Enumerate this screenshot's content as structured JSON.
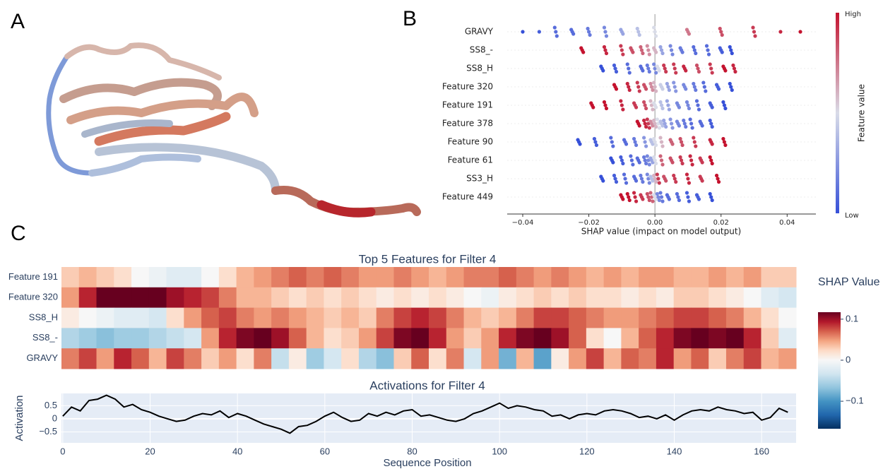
{
  "panel_labels": [
    "A",
    "B",
    "C"
  ],
  "chart_data": [
    {
      "type": "beeswarm",
      "xlabel": "SHAP value (impact on model output)",
      "categories": [
        "GRAVY",
        "SS8_-",
        "SS8_H",
        "Feature 320",
        "Feature 191",
        "Feature 378",
        "Feature 90",
        "Feature 61",
        "SS3_H",
        "Feature 449"
      ],
      "xlim": [
        -0.0447,
        0.0487
      ],
      "xticks": [
        {
          "value": -0.04,
          "label": "−0.04"
        },
        {
          "value": -0.02,
          "label": "−0.02"
        },
        {
          "value": 0,
          "label": "0.00"
        },
        {
          "value": 0.02,
          "label": "0.02"
        },
        {
          "value": 0.04,
          "label": "0.04"
        }
      ],
      "colorbar_title": "Feature value",
      "colorbar_high": "High",
      "colorbar_low": "Low",
      "colormap": [
        "#3650d8",
        "#d9dce8",
        "#c4122e"
      ],
      "shap_values": [
        [
          -0.04,
          -0.035,
          -0.03,
          -0.025,
          -0.02,
          -0.015,
          -0.01,
          -0.005,
          0.0,
          0.01,
          0.02,
          0.03,
          0.038,
          0.044
        ],
        [
          -0.022,
          -0.015,
          -0.01,
          -0.007,
          -0.004,
          -0.002,
          0.0,
          0.002,
          0.005,
          0.008,
          0.012,
          0.016,
          0.02,
          0.023
        ],
        [
          -0.016,
          -0.012,
          -0.008,
          -0.004,
          -0.002,
          0.0,
          0.001,
          0.003,
          0.006,
          0.009,
          0.013,
          0.017,
          0.021,
          0.024
        ],
        [
          -0.012,
          -0.008,
          -0.005,
          -0.003,
          -0.001,
          0.0,
          0.002,
          0.004,
          0.006,
          0.009,
          0.012,
          0.015,
          0.019,
          0.023
        ],
        [
          -0.019,
          -0.015,
          -0.01,
          -0.006,
          -0.003,
          -0.001,
          0.0,
          0.002,
          0.004,
          0.007,
          0.01,
          0.013,
          0.017,
          0.021
        ],
        [
          -0.005,
          -0.003,
          -0.002,
          -0.001,
          0.0,
          0.001,
          0.002,
          0.003,
          0.005,
          0.007,
          0.009,
          0.011,
          0.014,
          0.017
        ],
        [
          -0.023,
          -0.018,
          -0.013,
          -0.009,
          -0.006,
          -0.003,
          -0.001,
          0.0,
          0.002,
          0.005,
          0.008,
          0.012,
          0.017,
          0.021
        ],
        [
          -0.013,
          -0.01,
          -0.007,
          -0.005,
          -0.003,
          -0.002,
          -0.001,
          0.0,
          0.002,
          0.005,
          0.008,
          0.011,
          0.014,
          0.017
        ],
        [
          -0.016,
          -0.012,
          -0.009,
          -0.006,
          -0.004,
          -0.002,
          -0.001,
          0.0,
          0.001,
          0.003,
          0.006,
          0.01,
          0.014,
          0.019
        ],
        [
          -0.01,
          -0.008,
          -0.006,
          -0.004,
          -0.002,
          -0.001,
          0.0,
          0.001,
          0.002,
          0.004,
          0.007,
          0.01,
          0.013,
          0.017
        ]
      ],
      "feature_values": [
        [
          0.0,
          0.05,
          0.1,
          0.1,
          0.15,
          0.2,
          0.3,
          0.4,
          0.5,
          0.75,
          0.85,
          0.9,
          0.95,
          1.0
        ],
        [
          1.0,
          0.95,
          0.9,
          0.85,
          0.8,
          0.7,
          0.6,
          0.3,
          0.2,
          0.15,
          0.1,
          0.1,
          0.05,
          0.0
        ],
        [
          0.0,
          0.05,
          0.1,
          0.1,
          0.15,
          0.2,
          0.5,
          0.9,
          0.9,
          0.95,
          0.85,
          0.9,
          1.0,
          0.95
        ],
        [
          1.0,
          0.95,
          0.9,
          0.85,
          0.7,
          0.6,
          0.45,
          0.3,
          0.25,
          0.2,
          0.15,
          0.1,
          0.05,
          0.0
        ],
        [
          1.0,
          1.0,
          0.95,
          0.9,
          0.85,
          0.6,
          0.5,
          0.4,
          0.3,
          0.2,
          0.2,
          0.1,
          0.05,
          0.0
        ],
        [
          1.0,
          0.95,
          0.9,
          0.7,
          0.6,
          0.5,
          0.4,
          0.3,
          0.25,
          0.2,
          0.15,
          0.1,
          0.1,
          0.05
        ],
        [
          0.0,
          0.05,
          0.1,
          0.1,
          0.15,
          0.25,
          0.4,
          0.5,
          0.6,
          0.8,
          0.85,
          0.9,
          0.95,
          1.0
        ],
        [
          0.0,
          0.05,
          0.1,
          0.1,
          0.15,
          0.2,
          0.3,
          0.5,
          0.8,
          0.85,
          0.9,
          0.95,
          0.9,
          1.0
        ],
        [
          0.0,
          0.05,
          0.1,
          0.1,
          0.15,
          0.2,
          0.4,
          0.6,
          0.9,
          0.85,
          0.9,
          0.95,
          0.9,
          1.0
        ],
        [
          1.0,
          1.0,
          0.95,
          0.9,
          0.85,
          0.8,
          0.5,
          0.2,
          0.15,
          0.1,
          0.1,
          0.05,
          0.05,
          0.0
        ]
      ]
    },
    {
      "type": "heatmap",
      "title": "Top 5 Features for Filter 4",
      "rows": [
        "Feature 191",
        "Feature 320",
        "SS8_H",
        "SS8_-",
        "GRAVY"
      ],
      "colorbar_title": "SHAP Value",
      "zlim": [
        -0.167,
        0.117
      ],
      "zticks": [
        0.1,
        0,
        {
          "value": -0.1,
          "label": "−0.1"
        }
      ],
      "colorscale": [
        "#053061",
        "#2166ac",
        "#4393c3",
        "#92c5de",
        "#d1e5f0",
        "#f7f7f7",
        "#fddbc7",
        "#f4a582",
        "#d6604d",
        "#b2182b",
        "#67001f"
      ],
      "values": [
        [
          0.03,
          0.04,
          0.03,
          0.02,
          0.0,
          -0.01,
          -0.02,
          -0.02,
          0.0,
          0.02,
          0.04,
          0.05,
          0.06,
          0.07,
          0.06,
          0.07,
          0.06,
          0.05,
          0.05,
          0.06,
          0.05,
          0.04,
          0.05,
          0.06,
          0.06,
          0.07,
          0.06,
          0.05,
          0.06,
          0.05,
          0.04,
          0.05,
          0.04,
          0.05,
          0.05,
          0.04,
          0.04,
          0.05,
          0.04,
          0.05,
          0.03,
          0.03
        ],
        [
          0.05,
          0.09,
          0.13,
          0.15,
          0.14,
          0.13,
          0.1,
          0.09,
          0.08,
          0.06,
          0.04,
          0.04,
          0.03,
          0.02,
          0.03,
          0.02,
          0.03,
          0.02,
          0.01,
          0.02,
          0.01,
          0.02,
          0.01,
          0.0,
          -0.01,
          0.01,
          0.02,
          0.03,
          0.02,
          0.03,
          0.02,
          0.02,
          0.01,
          0.02,
          0.01,
          0.03,
          0.03,
          0.02,
          0.01,
          0.0,
          -0.02,
          -0.03
        ],
        [
          0.01,
          0.0,
          -0.01,
          -0.02,
          -0.02,
          -0.03,
          0.02,
          0.05,
          0.07,
          0.08,
          0.06,
          0.05,
          0.06,
          0.05,
          0.04,
          0.03,
          0.04,
          0.03,
          0.06,
          0.08,
          0.09,
          0.08,
          0.06,
          0.04,
          0.03,
          0.04,
          0.06,
          0.08,
          0.08,
          0.07,
          0.06,
          0.05,
          0.05,
          0.06,
          0.07,
          0.08,
          0.08,
          0.07,
          0.06,
          0.04,
          0.02,
          0.0
        ],
        [
          -0.05,
          -0.06,
          -0.07,
          -0.06,
          -0.06,
          -0.05,
          -0.04,
          -0.03,
          0.05,
          0.09,
          0.11,
          0.12,
          0.1,
          0.07,
          0.04,
          0.02,
          0.03,
          0.05,
          0.08,
          0.11,
          0.12,
          0.09,
          0.05,
          0.03,
          0.05,
          0.09,
          0.11,
          0.12,
          0.1,
          0.07,
          0.02,
          0.0,
          0.04,
          0.07,
          0.09,
          0.11,
          0.12,
          0.11,
          0.12,
          0.09,
          0.03,
          -0.02
        ],
        [
          0.06,
          0.08,
          0.05,
          0.09,
          0.07,
          0.04,
          0.08,
          0.06,
          0.03,
          0.05,
          0.02,
          0.06,
          -0.04,
          0.01,
          -0.06,
          -0.03,
          0.02,
          -0.05,
          -0.07,
          0.03,
          0.07,
          0.02,
          0.06,
          -0.03,
          0.05,
          -0.08,
          0.04,
          -0.09,
          0.01,
          0.05,
          0.08,
          0.04,
          0.07,
          0.06,
          0.09,
          0.05,
          0.07,
          0.03,
          0.06,
          0.08,
          0.04,
          0.05
        ]
      ]
    },
    {
      "type": "line",
      "title": "Activations for Filter 4",
      "xlabel": "Sequence Position",
      "ylabel": "Activation",
      "color": "#000000",
      "xlim": [
        -0.3,
        167.9
      ],
      "ylim": [
        -0.92,
        0.97
      ],
      "xticks": [
        0,
        20,
        40,
        60,
        80,
        100,
        120,
        140,
        160
      ],
      "yticks": [
        {
          "value": -0.5,
          "label": "−0.5"
        },
        0,
        0.5
      ],
      "x": [
        0,
        2,
        4,
        6,
        8,
        10,
        12,
        14,
        16,
        18,
        20,
        22,
        24,
        26,
        28,
        30,
        32,
        34,
        36,
        38,
        40,
        42,
        44,
        46,
        48,
        50,
        52,
        54,
        56,
        58,
        60,
        62,
        64,
        66,
        68,
        70,
        72,
        74,
        76,
        78,
        80,
        82,
        84,
        86,
        88,
        90,
        92,
        94,
        96,
        98,
        100,
        102,
        104,
        106,
        108,
        110,
        112,
        114,
        116,
        118,
        120,
        122,
        124,
        126,
        128,
        130,
        132,
        134,
        136,
        138,
        140,
        142,
        144,
        146,
        148,
        150,
        152,
        154,
        156,
        158,
        160,
        162,
        164,
        166
      ],
      "values": [
        0.1,
        0.45,
        0.3,
        0.7,
        0.75,
        0.9,
        0.75,
        0.45,
        0.55,
        0.35,
        0.25,
        0.1,
        0.0,
        -0.1,
        -0.05,
        0.1,
        0.2,
        0.15,
        0.3,
        0.05,
        0.2,
        0.1,
        -0.05,
        -0.2,
        -0.3,
        -0.4,
        -0.55,
        -0.3,
        -0.25,
        -0.1,
        0.1,
        0.25,
        0.05,
        -0.1,
        -0.05,
        0.2,
        0.1,
        0.25,
        0.15,
        0.3,
        0.35,
        0.1,
        0.15,
        0.05,
        -0.05,
        -0.1,
        0.0,
        0.2,
        0.3,
        0.45,
        0.6,
        0.4,
        0.5,
        0.45,
        0.35,
        0.3,
        0.1,
        0.15,
        0.0,
        0.15,
        0.2,
        0.15,
        0.3,
        0.35,
        0.3,
        0.2,
        0.05,
        0.1,
        0.0,
        0.15,
        -0.05,
        0.15,
        0.3,
        0.35,
        0.3,
        0.45,
        0.35,
        0.3,
        0.2,
        0.25,
        -0.05,
        0.05,
        0.4,
        0.25
      ]
    }
  ]
}
